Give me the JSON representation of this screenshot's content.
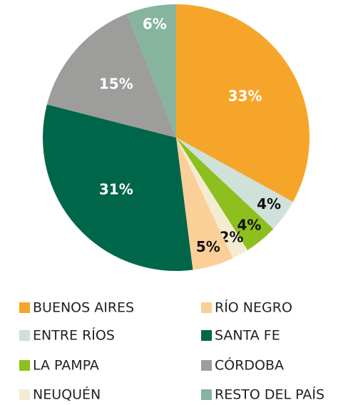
{
  "chart_data": {
    "type": "pie",
    "categories": [
      "BUENOS AIRES",
      "ENTRE RÍOS",
      "LA PAMPA",
      "NEUQUÉN",
      "RÍO NEGRO",
      "SANTA FE",
      "CÓRDOBA",
      "RESTO DEL PAÍS"
    ],
    "values": [
      33,
      4,
      4,
      2,
      5,
      31,
      15,
      6
    ],
    "value_labels": [
      "33%",
      "4%",
      "4%",
      "2%",
      "5%",
      "31%",
      "15%",
      "6%"
    ],
    "colors": [
      "#f5a62a",
      "#cfe1d9",
      "#8dbf1e",
      "#f4ecd2",
      "#fbcf98",
      "#00664a",
      "#9d9d9c",
      "#86b49f"
    ]
  }
}
